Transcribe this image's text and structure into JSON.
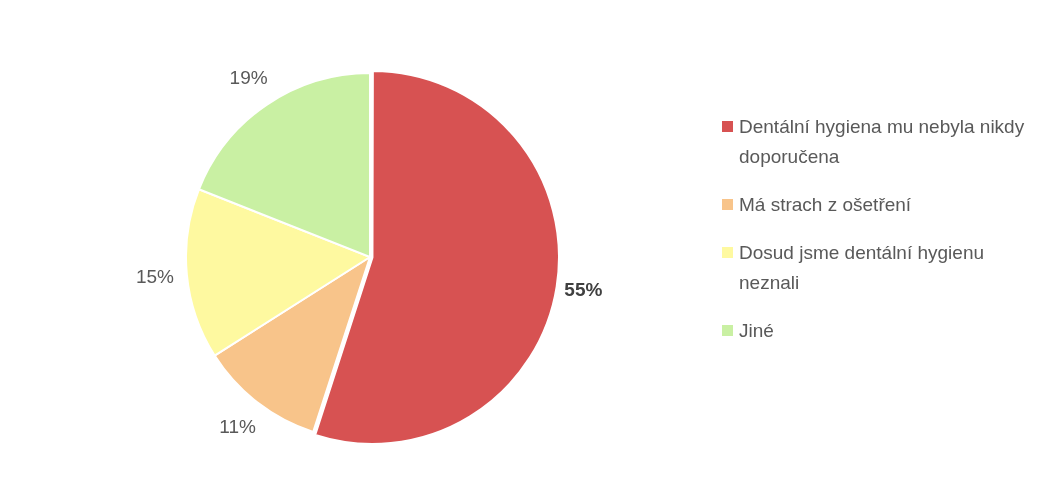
{
  "chart_data": {
    "type": "pie",
    "categories": [
      "Dentální hygiena mu nebyla nikdy doporučena",
      "Má strach z ošetření",
      "Dosud jsme dentální hygienu neznali",
      "Jiné"
    ],
    "values": [
      55,
      11,
      15,
      19
    ],
    "colors": [
      "#d75252",
      "#f8c48a",
      "#fef9a0",
      "#c9f0a3"
    ],
    "value_labels": [
      "55%",
      "11%",
      "15%",
      "19%"
    ],
    "legend": "right"
  }
}
